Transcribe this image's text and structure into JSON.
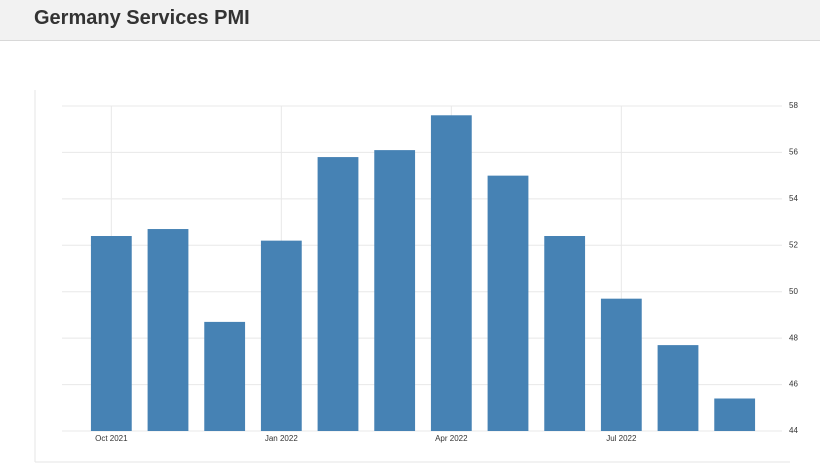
{
  "chart_data": {
    "type": "bar",
    "title": "Germany Services PMI",
    "categories": [
      "Oct 2021",
      null,
      null,
      "Jan 2022",
      null,
      null,
      "Apr 2022",
      null,
      null,
      "Jul 2022",
      null,
      null
    ],
    "values": [
      52.4,
      52.7,
      48.7,
      52.2,
      55.8,
      56.1,
      57.6,
      55.0,
      52.4,
      49.7,
      47.7,
      45.4
    ],
    "color": "#4682b4",
    "ylim": [
      44,
      58
    ],
    "yticks": [
      44,
      46,
      48,
      50,
      52,
      54,
      56,
      58
    ],
    "grid": true
  }
}
